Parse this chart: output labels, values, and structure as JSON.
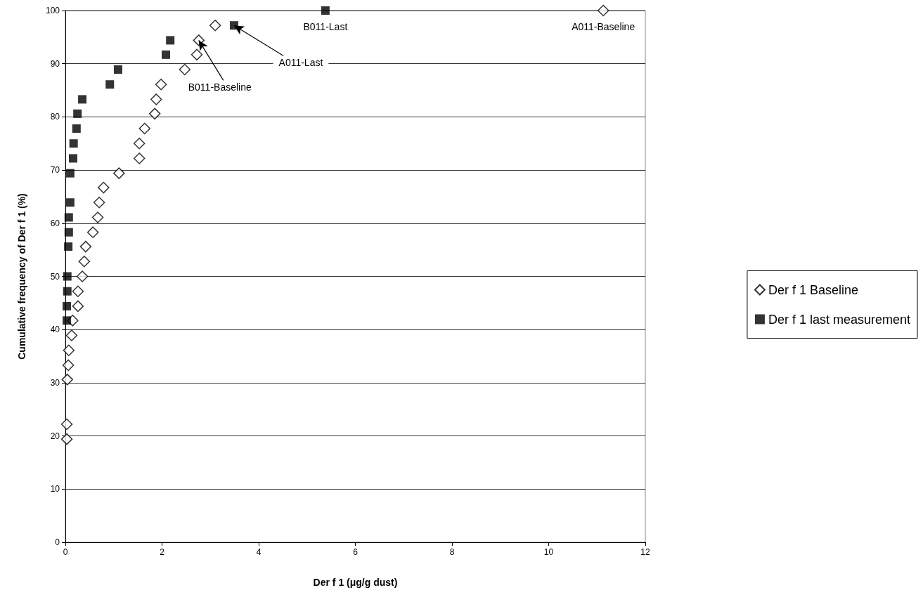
{
  "chart_data": {
    "type": "scatter",
    "xlabel": "Der f 1 (μg/g dust)",
    "ylabel": "Cumulative frequency of Der f 1 (%)",
    "xlim": [
      0,
      12
    ],
    "xticks": [
      0,
      2,
      4,
      6,
      8,
      10,
      12
    ],
    "ylim": [
      0,
      100
    ],
    "yticks": [
      0,
      10,
      20,
      30,
      40,
      50,
      60,
      70,
      80,
      90,
      100
    ],
    "grid": "y",
    "legend": "right",
    "series": [
      {
        "name": "Der f 1 Baseline",
        "color": "#000000",
        "marker": "diamond",
        "x": [
          0.03,
          0.03,
          0.04,
          0.06,
          0.07,
          0.13,
          0.15,
          0.26,
          0.26,
          0.35,
          0.39,
          0.42,
          0.57,
          0.67,
          0.7,
          0.79,
          1.11,
          1.53,
          1.53,
          1.64,
          1.85,
          1.88,
          1.98,
          2.47,
          2.72,
          2.76,
          3.1,
          11.13
        ],
        "values": [
          19.4,
          22.2,
          30.6,
          33.3,
          36.1,
          38.9,
          41.7,
          44.4,
          47.2,
          50,
          52.8,
          55.6,
          58.3,
          61.1,
          63.9,
          66.7,
          69.4,
          72.2,
          75,
          77.8,
          80.6,
          83.3,
          86.1,
          88.9,
          91.7,
          94.4,
          97.2,
          100
        ]
      },
      {
        "name": "Der f 1 last measurement",
        "color": "#000000",
        "marker": "square",
        "x": [
          0.03,
          0.03,
          0.04,
          0.04,
          0.06,
          0.07,
          0.07,
          0.1,
          0.1,
          0.16,
          0.17,
          0.23,
          0.25,
          0.35,
          0.92,
          1.09,
          2.08,
          2.17,
          3.49,
          5.38
        ],
        "values": [
          41.7,
          44.4,
          47.2,
          50,
          55.6,
          58.3,
          61.1,
          63.9,
          69.4,
          72.2,
          75,
          77.8,
          80.6,
          83.3,
          86.1,
          88.9,
          91.7,
          94.4,
          97.2,
          100
        ]
      }
    ],
    "annotations": [
      {
        "text": "B011-Last",
        "x": 5.38,
        "y": 100
      },
      {
        "text": "A011-Baseline",
        "x": 11.13,
        "y": 100
      },
      {
        "text": "A011-Last",
        "x": 3.49,
        "y": 97.2
      },
      {
        "text": "B011-Baseline",
        "x": 2.76,
        "y": 94.4
      }
    ]
  }
}
